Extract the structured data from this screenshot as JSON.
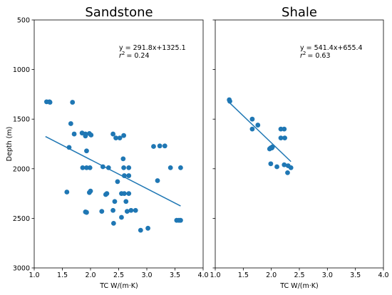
{
  "chart_data": [
    {
      "type": "scatter",
      "title": "Sandstone",
      "xlabel": "TC W/(m·K)",
      "ylabel": "Depth (m)",
      "xlim": [
        1.0,
        4.0
      ],
      "ylim": [
        3000,
        500
      ],
      "y_inverted": true,
      "xticks": [
        "1.0",
        "1.5",
        "2.0",
        "2.5",
        "3.0",
        "3.5",
        "4.0"
      ],
      "yticks": [
        "500",
        "1000",
        "1500",
        "2000",
        "2500",
        "3000"
      ],
      "marker_color": "#1f77b4",
      "fit": {
        "slope": 291.8,
        "intercept": 1325.1,
        "x_range": [
          1.2,
          3.6
        ],
        "equation": "y = 291.8x+1325.1",
        "r2_label": "r",
        "r2_value": "= 0.24"
      },
      "points": [
        [
          1.22,
          1325
        ],
        [
          1.27,
          1325
        ],
        [
          1.28,
          1330
        ],
        [
          1.68,
          1330
        ],
        [
          1.65,
          1545
        ],
        [
          1.71,
          1650
        ],
        [
          1.85,
          1640
        ],
        [
          1.91,
          1650
        ],
        [
          1.91,
          1670
        ],
        [
          1.98,
          1645
        ],
        [
          2.01,
          1660
        ],
        [
          2.4,
          1650
        ],
        [
          2.45,
          1690
        ],
        [
          2.52,
          1690
        ],
        [
          2.59,
          1665
        ],
        [
          1.62,
          1785
        ],
        [
          1.93,
          1820
        ],
        [
          3.12,
          1775
        ],
        [
          3.23,
          1770
        ],
        [
          3.32,
          1770
        ],
        [
          2.58,
          1900
        ],
        [
          1.86,
          1990
        ],
        [
          1.93,
          1990
        ],
        [
          1.99,
          1990
        ],
        [
          2.22,
          1980
        ],
        [
          2.32,
          1990
        ],
        [
          2.59,
          1990
        ],
        [
          2.68,
          1990
        ],
        [
          3.42,
          1990
        ],
        [
          3.6,
          1990
        ],
        [
          2.6,
          2070
        ],
        [
          2.68,
          2070
        ],
        [
          3.19,
          2120
        ],
        [
          2.48,
          2130
        ],
        [
          1.58,
          2235
        ],
        [
          1.98,
          2240
        ],
        [
          2.0,
          2225
        ],
        [
          2.27,
          2260
        ],
        [
          2.29,
          2250
        ],
        [
          2.55,
          2250
        ],
        [
          2.6,
          2250
        ],
        [
          2.68,
          2250
        ],
        [
          2.43,
          2330
        ],
        [
          2.63,
          2330
        ],
        [
          2.2,
          2430
        ],
        [
          2.4,
          2420
        ],
        [
          2.65,
          2430
        ],
        [
          2.72,
          2420
        ],
        [
          2.8,
          2420
        ],
        [
          1.91,
          2435
        ],
        [
          1.93,
          2440
        ],
        [
          2.55,
          2490
        ],
        [
          3.53,
          2520
        ],
        [
          3.57,
          2520
        ],
        [
          3.6,
          2520
        ],
        [
          2.41,
          2550
        ],
        [
          2.89,
          2620
        ],
        [
          3.02,
          2600
        ]
      ]
    },
    {
      "type": "scatter",
      "title": "Shale",
      "xlabel": "TC W/(m·K)",
      "ylabel": "",
      "xlim": [
        1.0,
        4.0
      ],
      "ylim": [
        3000,
        500
      ],
      "y_inverted": true,
      "xticks": [
        "1.0",
        "1.5",
        "2.0",
        "2.5",
        "3.0",
        "3.5",
        "4.0"
      ],
      "yticks": [],
      "marker_color": "#1f77b4",
      "fit": {
        "slope": 541.4,
        "intercept": 655.4,
        "x_range": [
          1.25,
          2.35
        ],
        "equation": "y = 541.4x+655.4",
        "r2_label": "r",
        "r2_value": "= 0.63"
      },
      "points": [
        [
          1.25,
          1305
        ],
        [
          1.26,
          1320
        ],
        [
          1.66,
          1500
        ],
        [
          1.66,
          1600
        ],
        [
          1.76,
          1560
        ],
        [
          1.97,
          1800
        ],
        [
          1.99,
          1790
        ],
        [
          2.01,
          1790
        ],
        [
          2.02,
          1780
        ],
        [
          2.17,
          1600
        ],
        [
          2.23,
          1600
        ],
        [
          2.17,
          1690
        ],
        [
          2.24,
          1690
        ],
        [
          1.99,
          1950
        ],
        [
          2.1,
          1980
        ],
        [
          2.23,
          1960
        ],
        [
          2.3,
          1970
        ],
        [
          2.35,
          1990
        ],
        [
          2.29,
          2040
        ]
      ]
    }
  ]
}
